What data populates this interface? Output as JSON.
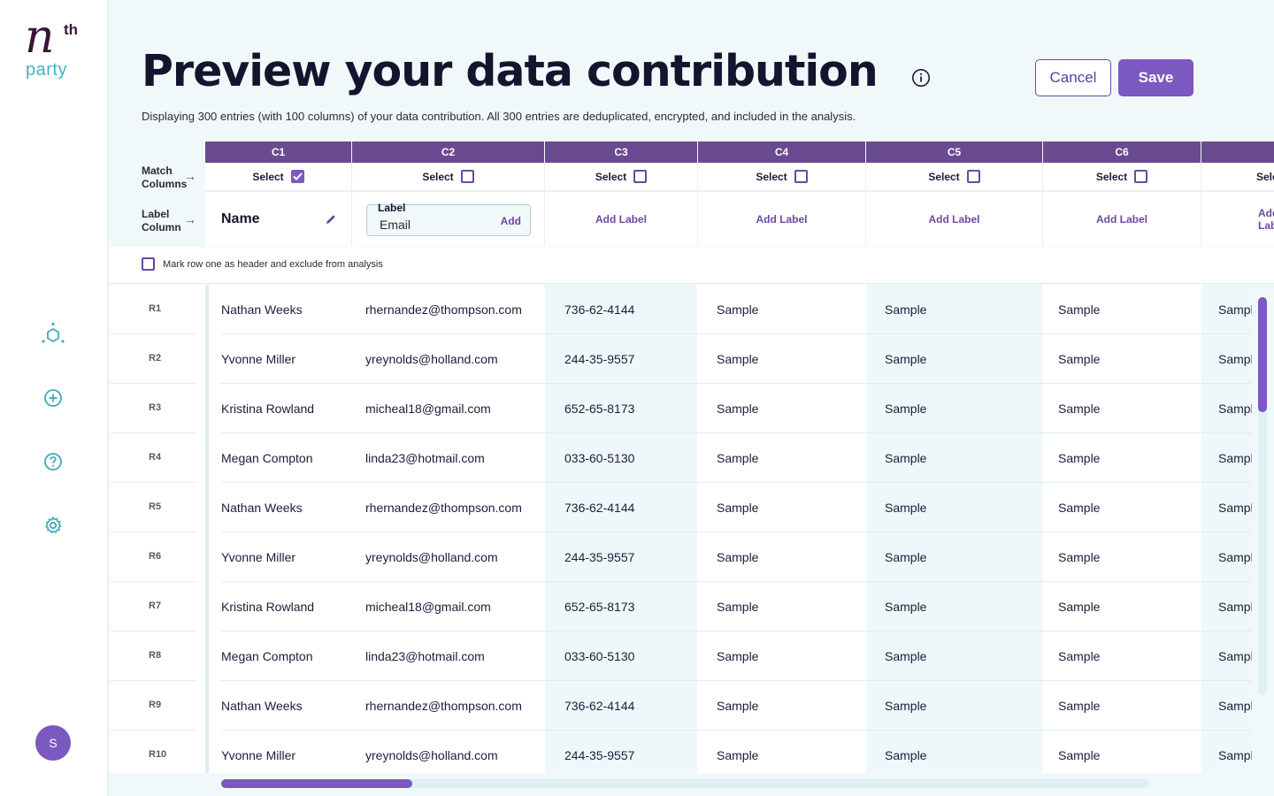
{
  "brand": {
    "logo_n": "n",
    "logo_th": "th",
    "logo_party": "party"
  },
  "sidebar": {
    "items": [
      {
        "icon": "network-icon"
      },
      {
        "icon": "add-circle-icon"
      },
      {
        "icon": "help-icon"
      },
      {
        "icon": "settings-icon"
      }
    ],
    "avatar_initial": "S"
  },
  "header": {
    "title": "Preview your data contribution",
    "subtitle": "Displaying 300 entries (with 100 columns) of your data contribution. All 300 entries are deduplicated, encrypted, and included in the analysis.",
    "cancel_label": "Cancel",
    "save_label": "Save"
  },
  "controls": {
    "match_columns_label": "Match Columns",
    "label_column_label": "Label Column",
    "select_label": "Select",
    "add_label_text": "Add Label",
    "name_label": "Name",
    "label_field_caption": "Label",
    "label_field_value": "Email",
    "label_field_add": "Add",
    "mark_row_text": "Mark row one as header and exclude from analysis"
  },
  "columns": [
    {
      "id": "C1",
      "selected": true
    },
    {
      "id": "C2",
      "selected": false
    },
    {
      "id": "C3",
      "selected": false
    },
    {
      "id": "C4",
      "selected": false
    },
    {
      "id": "C5",
      "selected": false
    },
    {
      "id": "C6",
      "selected": false
    },
    {
      "id": "",
      "selected": false
    }
  ],
  "rows": [
    {
      "id": "R1",
      "cells": [
        "Nathan Weeks",
        "rhernandez@thompson.com",
        "736-62-4144",
        "Sample",
        "Sample",
        "Sample",
        "Sample"
      ]
    },
    {
      "id": "R2",
      "cells": [
        "Yvonne Miller",
        "yreynolds@holland.com",
        "244-35-9557",
        "Sample",
        "Sample",
        "Sample",
        "Sample"
      ]
    },
    {
      "id": "R3",
      "cells": [
        "Kristina Rowland",
        "micheal18@gmail.com",
        "652-65-8173",
        "Sample",
        "Sample",
        "Sample",
        "Sample"
      ]
    },
    {
      "id": "R4",
      "cells": [
        "Megan Compton",
        "linda23@hotmail.com",
        "033-60-5130",
        "Sample",
        "Sample",
        "Sample",
        "Sample"
      ]
    },
    {
      "id": "R5",
      "cells": [
        "Nathan Weeks",
        "rhernandez@thompson.com",
        "736-62-4144",
        "Sample",
        "Sample",
        "Sample",
        "Sample"
      ]
    },
    {
      "id": "R6",
      "cells": [
        "Yvonne Miller",
        "yreynolds@holland.com",
        "244-35-9557",
        "Sample",
        "Sample",
        "Sample",
        "Sample"
      ]
    },
    {
      "id": "R7",
      "cells": [
        "Kristina Rowland",
        "micheal18@gmail.com",
        "652-65-8173",
        "Sample",
        "Sample",
        "Sample",
        "Sample"
      ]
    },
    {
      "id": "R8",
      "cells": [
        "Megan Compton",
        "linda23@hotmail.com",
        "033-60-5130",
        "Sample",
        "Sample",
        "Sample",
        "Sample"
      ]
    },
    {
      "id": "R9",
      "cells": [
        "Nathan Weeks",
        "rhernandez@thompson.com",
        "736-62-4144",
        "Sample",
        "Sample",
        "Sample",
        "Sample"
      ]
    },
    {
      "id": "R10",
      "cells": [
        "Yvonne Miller",
        "yreynolds@holland.com",
        "244-35-9557",
        "Sample",
        "Sample",
        "Sample",
        "Sample"
      ]
    }
  ],
  "colors": {
    "accent": "#7b59c0",
    "header": "#6a4a90",
    "teal": "#3fb3c6"
  }
}
